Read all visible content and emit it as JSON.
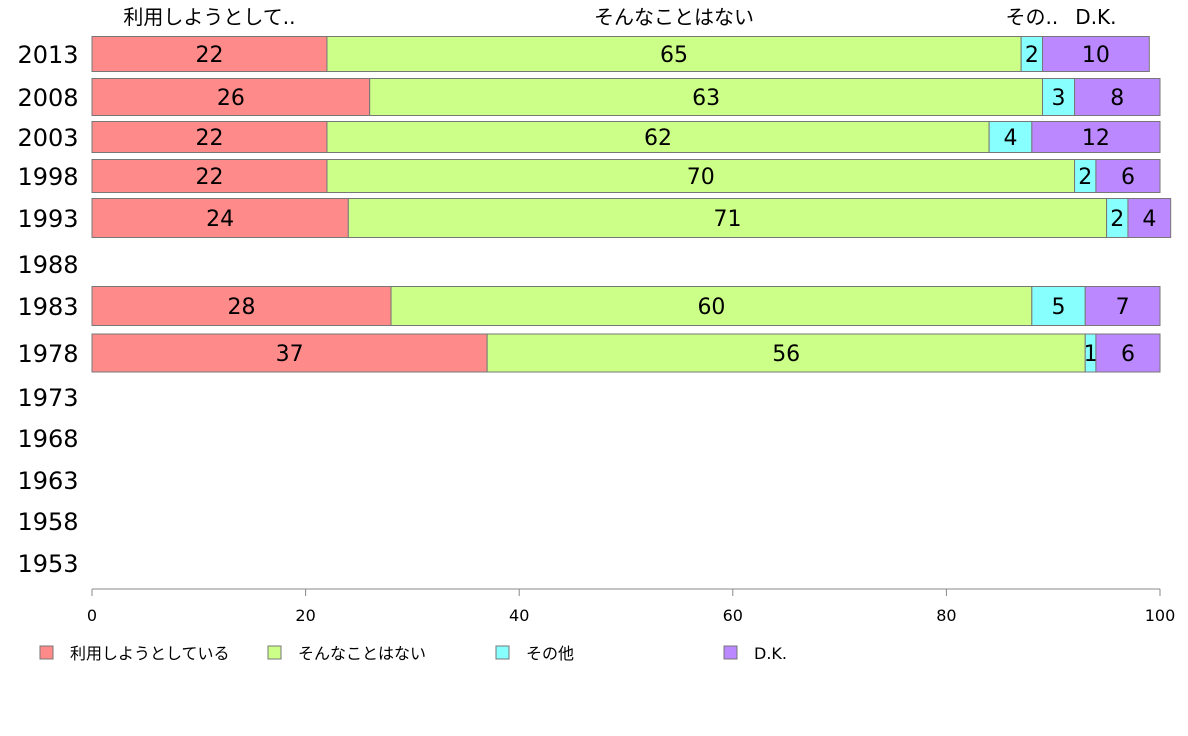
{
  "chart_data": {
    "type": "bar",
    "orientation": "horizontal",
    "stacked": true,
    "categories": [
      "2013",
      "2008",
      "2003",
      "1998",
      "1993",
      "1988",
      "1983",
      "1978",
      "1973",
      "1968",
      "1963",
      "1958",
      "1953"
    ],
    "series": [
      {
        "name": "利用しようとしている",
        "short_label": "利用しようとして..",
        "color": "#FF8A8A",
        "values": [
          22,
          26,
          22,
          22,
          24,
          null,
          28,
          37,
          null,
          null,
          null,
          null,
          null
        ]
      },
      {
        "name": "そんなことはない",
        "short_label": "そんなことはない",
        "color": "#CCFF88",
        "values": [
          65,
          63,
          62,
          70,
          71,
          null,
          60,
          56,
          null,
          null,
          null,
          null,
          null
        ]
      },
      {
        "name": "その他",
        "short_label": "その..",
        "color": "#88FFFF",
        "values": [
          2,
          3,
          4,
          2,
          2,
          null,
          5,
          1,
          null,
          null,
          null,
          null,
          null
        ]
      },
      {
        "name": "D.K.",
        "short_label": "D.K.",
        "color": "#BB88FF",
        "values": [
          10,
          8,
          12,
          6,
          4,
          null,
          7,
          6,
          null,
          null,
          null,
          null,
          null
        ]
      }
    ],
    "xlim": [
      0,
      100
    ],
    "xticks": [
      0,
      20,
      40,
      60,
      80,
      100
    ],
    "legend_position": "bottom",
    "grid": false
  }
}
